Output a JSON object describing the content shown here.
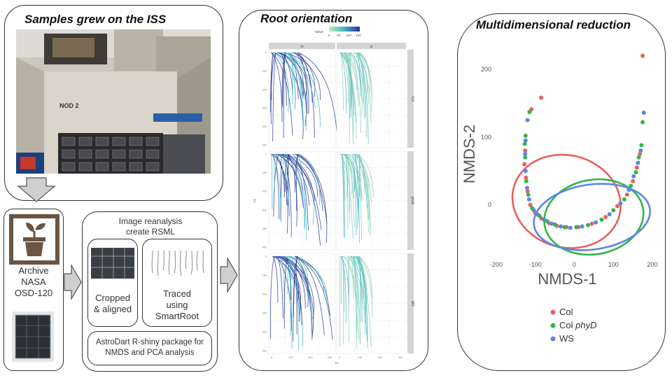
{
  "panels": {
    "iss_title": "Samples grew on the ISS",
    "iss_photo_label": "NOD 2",
    "archive_lines": [
      "Archive",
      "NASA",
      "OSD-120"
    ],
    "reanalysis_title_lines": [
      "Image reanalysis",
      "create RSML"
    ],
    "cropped_lines": [
      "Cropped",
      "& aligned"
    ],
    "traced_lines": [
      "Traced",
      "using",
      "SmartRoot"
    ],
    "astrodart_lines": [
      "AstroDart R-shiny package for",
      "NMDS and PCA analysis"
    ],
    "root_title": "Root orientation",
    "nmds_title": "Multidimensional reduction"
  },
  "root_plot": {
    "legend_title": "value",
    "legend_ticks": [
      "0",
      "50",
      "100",
      "150"
    ],
    "columns": [
      "m",
      "w"
    ],
    "rows": [
      "Col",
      "phyD",
      "WS"
    ],
    "xlabel": "x1",
    "ylabel": "-y1",
    "x_ticks": [
      "0",
      "100",
      "200",
      "300"
    ],
    "y_ticks": [
      "0",
      "-100",
      "-200",
      "-300",
      "-400",
      "-500"
    ]
  },
  "chart_data": {
    "type": "scatter",
    "title": "",
    "xlabel": "NMDS-1",
    "ylabel": "NMDS-2",
    "xlim": [
      -200,
      200
    ],
    "ylim": [
      -80,
      230
    ],
    "x_ticks": [
      -200,
      -100,
      0,
      100,
      200
    ],
    "y_ticks": [
      0,
      100,
      200
    ],
    "grid": false,
    "legend_position": "bottom",
    "series": [
      {
        "name": "Col",
        "color": "#e8605c",
        "points": [
          [
            -126,
            80
          ],
          [
            -128,
            60
          ],
          [
            -124,
            40
          ],
          [
            -120,
            20
          ],
          [
            -113,
            0
          ],
          [
            -100,
            -12
          ],
          [
            -85,
            -20
          ],
          [
            -65,
            -27
          ],
          [
            -45,
            -31
          ],
          [
            -20,
            -33
          ],
          [
            10,
            -33
          ],
          [
            45,
            -28
          ],
          [
            80,
            -18
          ],
          [
            110,
            -2
          ],
          [
            135,
            15
          ],
          [
            150,
            35
          ],
          [
            160,
            55
          ],
          [
            168,
            75
          ],
          [
            175,
            220
          ],
          [
            -85,
            158
          ],
          [
            -110,
            141
          ]
        ]
      },
      {
        "name": "Col phyD",
        "color": "#33b54a",
        "points": [
          [
            -125,
            102
          ],
          [
            -127,
            90
          ],
          [
            -126,
            70
          ],
          [
            -123,
            35
          ],
          [
            -118,
            15
          ],
          [
            -108,
            -5
          ],
          [
            -90,
            -16
          ],
          [
            -70,
            -24
          ],
          [
            -50,
            -29
          ],
          [
            -25,
            -33
          ],
          [
            5,
            -33
          ],
          [
            35,
            -30
          ],
          [
            70,
            -22
          ],
          [
            100,
            -8
          ],
          [
            128,
            8
          ],
          [
            145,
            28
          ],
          [
            158,
            48
          ],
          [
            165,
            70
          ],
          [
            172,
            88
          ],
          [
            175,
            122
          ],
          [
            -115,
            137
          ]
        ]
      },
      {
        "name": "WS",
        "color": "#5a86e8",
        "points": [
          [
            -125,
            95
          ],
          [
            -126,
            75
          ],
          [
            -125,
            50
          ],
          [
            -121,
            25
          ],
          [
            -116,
            8
          ],
          [
            -104,
            -8
          ],
          [
            -95,
            -14
          ],
          [
            -78,
            -22
          ],
          [
            -58,
            -28
          ],
          [
            -35,
            -32
          ],
          [
            -10,
            -34
          ],
          [
            20,
            -32
          ],
          [
            55,
            -26
          ],
          [
            90,
            -14
          ],
          [
            118,
            2
          ],
          [
            140,
            22
          ],
          [
            152,
            42
          ],
          [
            163,
            62
          ],
          [
            170,
            80
          ],
          [
            178,
            136
          ],
          [
            -120,
            125
          ]
        ]
      }
    ],
    "ellipses": [
      {
        "series": "Col",
        "cx": -20,
        "cy": 5,
        "rx": 140,
        "ry": 68,
        "angle": 15
      },
      {
        "series": "Col phyD",
        "cx": 50,
        "cy": -18,
        "rx": 128,
        "ry": 55,
        "angle": -10
      },
      {
        "series": "WS",
        "cx": 45,
        "cy": -18,
        "rx": 150,
        "ry": 48,
        "angle": -8
      }
    ]
  },
  "colors": {
    "arrow_fill": "#cfcfcf",
    "root_dark": "#253494",
    "root_light": "#7fcdbb"
  }
}
